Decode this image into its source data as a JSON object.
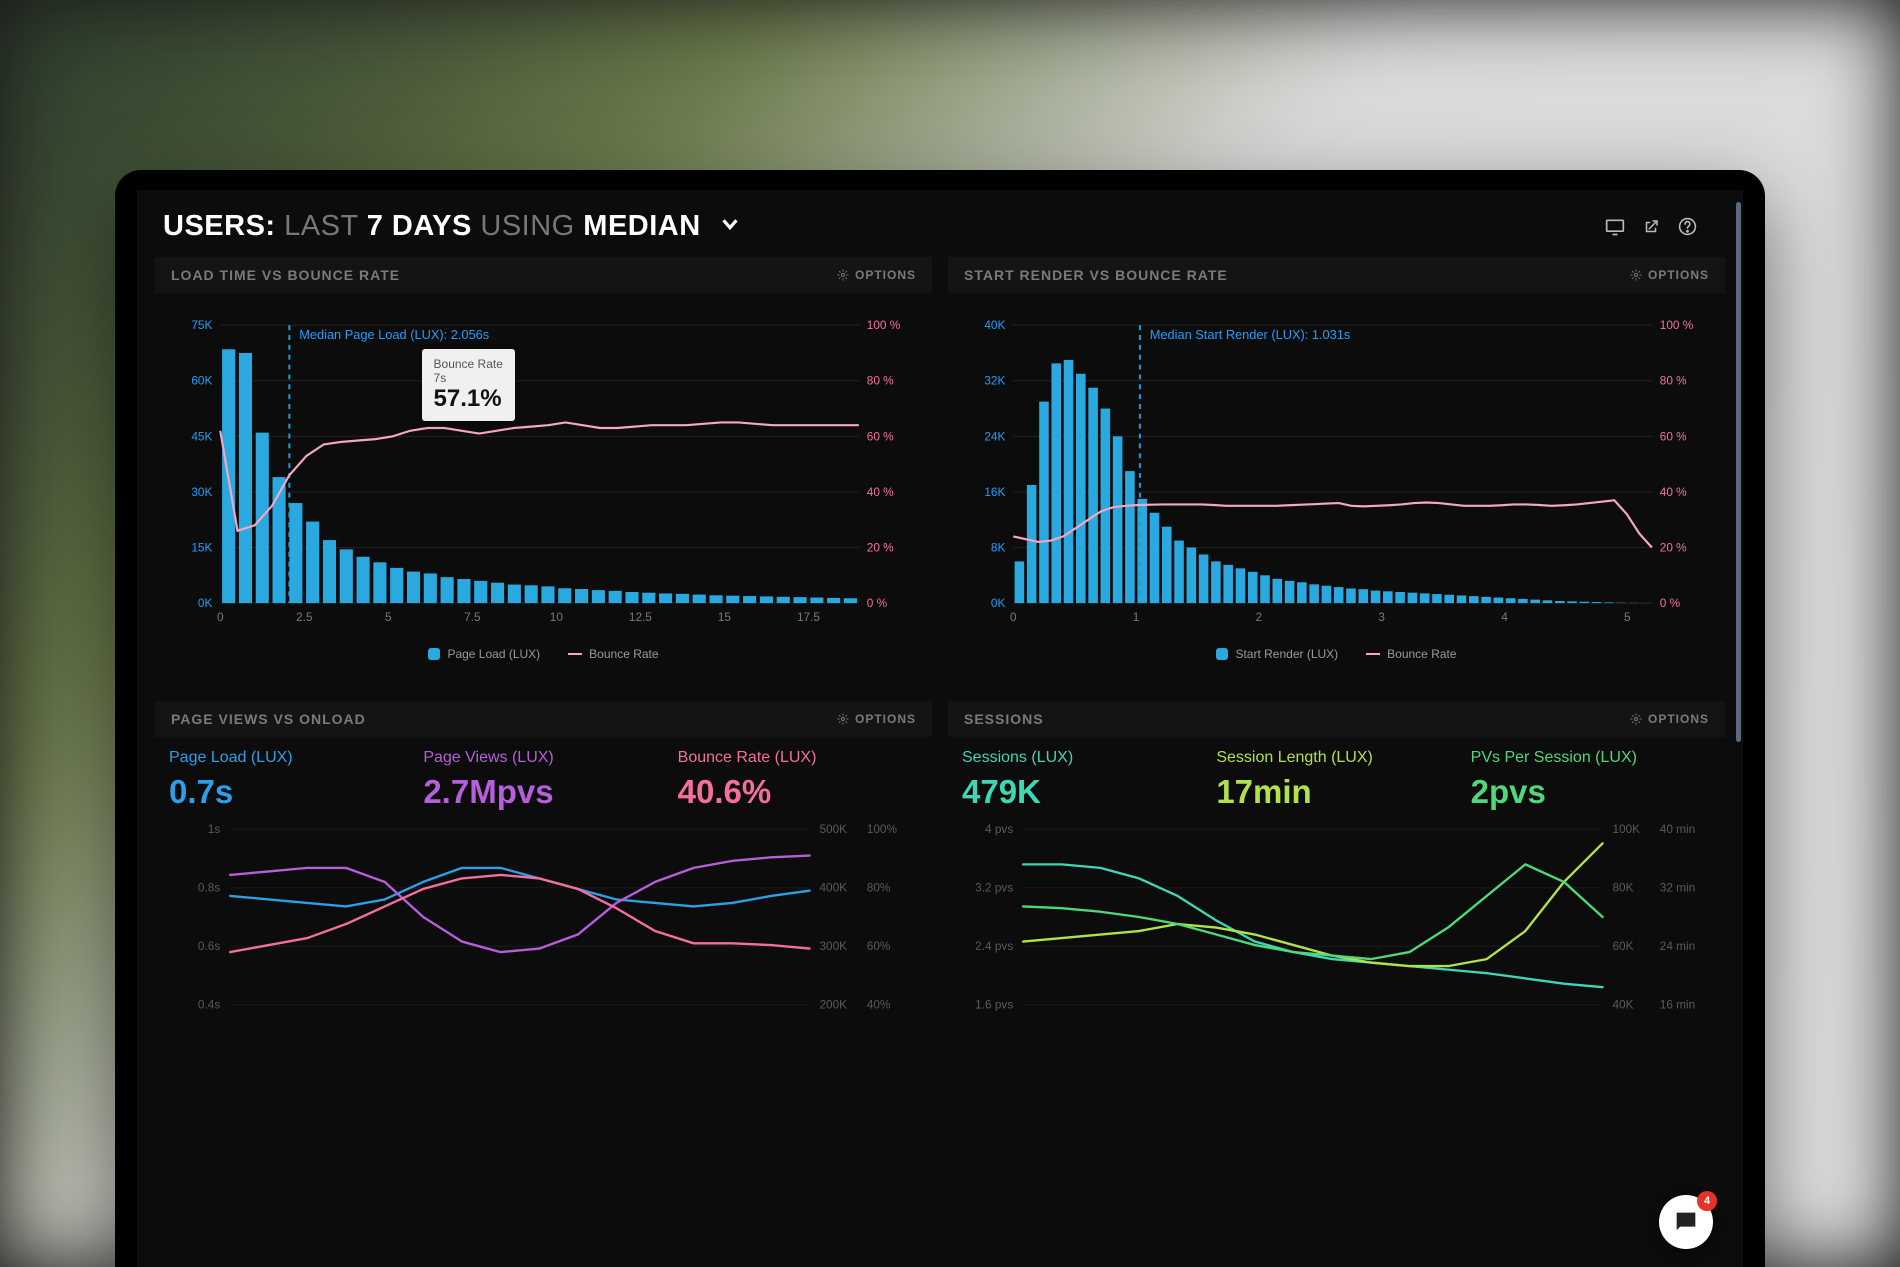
{
  "header": {
    "prefix": "USERS:",
    "dim1": "LAST",
    "bold1": "7 DAYS",
    "dim2": "USING",
    "bold2": "MEDIAN"
  },
  "colors": {
    "bg": "#0c0c0c",
    "panel_head": "#141414",
    "text_muted": "#7a7a7a",
    "bar": "#2aa8e0",
    "bar_glow": "#1fc8ff",
    "line_pink": "#f7a7c0",
    "axis_blue": "#1e9fff",
    "axis_pink": "#f56ea0",
    "grid": "#222222",
    "median_dash": "#18a0e0",
    "tooltip_bg": "#f0f0f0",
    "blue": "#2b9fe8",
    "purple": "#b65edc",
    "pink": "#f56ea0",
    "teal": "#3ed6b5",
    "lime": "#b0e24a",
    "green2": "#4fd87a"
  },
  "options_label": "OPTIONS",
  "chart1": {
    "title": "LOAD TIME VS BOUNCE RATE",
    "median_label": "Median Page Load (LUX): 2.056s",
    "median_x": 2.056,
    "left_axis": {
      "ticks": [
        0,
        15,
        30,
        45,
        60,
        75
      ],
      "suffix": "K",
      "max": 75
    },
    "right_axis": {
      "ticks": [
        0,
        20,
        40,
        60,
        80,
        100
      ],
      "suffix": " %",
      "max": 100
    },
    "x_axis": {
      "ticks": [
        0,
        2.5,
        5,
        7.5,
        10,
        12.5,
        15,
        17.5
      ],
      "max": 19
    },
    "bars": [
      68.5,
      67.5,
      46,
      34,
      27,
      22,
      17,
      14.5,
      12.5,
      11,
      9.5,
      8.5,
      8,
      7,
      6.5,
      6,
      5.5,
      5,
      4.8,
      4.5,
      4,
      3.8,
      3.5,
      3.3,
      3,
      2.8,
      2.6,
      2.5,
      2.3,
      2.1,
      2,
      1.9,
      1.8,
      1.7,
      1.6,
      1.5,
      1.4,
      1.3
    ],
    "bounce_line": [
      62,
      26,
      28,
      35,
      46,
      53,
      57.1,
      58,
      58.5,
      59,
      60,
      62,
      63,
      63,
      62,
      61,
      62,
      63,
      63.5,
      64,
      65,
      64,
      63,
      63,
      63.5,
      64,
      64,
      64,
      64.5,
      65,
      65,
      64.5,
      64,
      64,
      64,
      64,
      64,
      64
    ],
    "tooltip": {
      "title": "Bounce Rate",
      "sub": "7s",
      "value": "57.1%",
      "x": 7
    },
    "legend1": "Page Load (LUX)",
    "legend2": "Bounce Rate"
  },
  "chart2": {
    "title": "START RENDER VS BOUNCE RATE",
    "median_label": "Median Start Render (LUX): 1.031s",
    "median_x": 1.031,
    "left_axis": {
      "ticks": [
        0,
        8,
        16,
        24,
        32,
        40
      ],
      "suffix": "K",
      "max": 40
    },
    "right_axis": {
      "ticks": [
        0,
        20,
        40,
        60,
        80,
        100
      ],
      "suffix": " %",
      "max": 100
    },
    "x_axis": {
      "ticks": [
        0,
        1,
        2,
        3,
        4,
        5
      ],
      "max": 5.2
    },
    "bars": [
      6,
      17,
      29,
      34.5,
      35,
      33,
      31,
      28,
      24,
      19,
      15,
      13,
      11,
      9,
      8,
      7,
      6,
      5.5,
      5,
      4.5,
      4,
      3.5,
      3.2,
      3,
      2.7,
      2.5,
      2.3,
      2.1,
      2,
      1.8,
      1.7,
      1.6,
      1.5,
      1.4,
      1.3,
      1.2,
      1.1,
      1,
      0.9,
      0.8,
      0.7,
      0.6,
      0.5,
      0.4,
      0.3,
      0.25,
      0.2,
      0.15,
      0.1,
      0.05,
      0.03,
      0.02
    ],
    "bounce_line": [
      24,
      23,
      22,
      22.5,
      24,
      27,
      30,
      33,
      34.5,
      35,
      35.3,
      35.4,
      35.5,
      35.5,
      35.5,
      35.5,
      35.3,
      35,
      35,
      35,
      35,
      35,
      35.2,
      35.4,
      35.6,
      35.8,
      36,
      35,
      34.8,
      35,
      35.2,
      35.5,
      36,
      36.2,
      36,
      35.5,
      35,
      35,
      35,
      35.2,
      35.5,
      35.5,
      35.3,
      35,
      35.2,
      35.5,
      36,
      36.5,
      37,
      32,
      25,
      20
    ],
    "legend1": "Start Render (LUX)",
    "legend2": "Bounce Rate"
  },
  "chart3": {
    "title": "PAGE VIEWS VS ONLOAD",
    "metrics": [
      {
        "label": "Page Load (LUX)",
        "value": "0.7s",
        "cls": "c-blue"
      },
      {
        "label": "Page Views (LUX)",
        "value": "2.7Mpvs",
        "cls": "c-purple"
      },
      {
        "label": "Bounce Rate (LUX)",
        "value": "40.6%",
        "cls": "c-pink"
      }
    ],
    "left_axis": {
      "ticks": [
        "1s",
        "0.8s",
        "0.6s",
        "0.4s"
      ]
    },
    "right_axis1": {
      "ticks": [
        "500K",
        "400K",
        "300K",
        "200K"
      ]
    },
    "right_axis2": {
      "ticks": [
        "100%",
        "80%",
        "60%",
        "40%"
      ]
    },
    "lines": {
      "blue": [
        0.62,
        0.6,
        0.58,
        0.56,
        0.6,
        0.7,
        0.78,
        0.78,
        0.72,
        0.66,
        0.6,
        0.58,
        0.56,
        0.58,
        0.62,
        0.65
      ],
      "purple": [
        0.74,
        0.76,
        0.78,
        0.78,
        0.7,
        0.5,
        0.36,
        0.3,
        0.32,
        0.4,
        0.58,
        0.7,
        0.78,
        0.82,
        0.84,
        0.85
      ],
      "pink": [
        0.3,
        0.34,
        0.38,
        0.46,
        0.56,
        0.66,
        0.72,
        0.74,
        0.72,
        0.66,
        0.55,
        0.42,
        0.35,
        0.35,
        0.34,
        0.32
      ]
    }
  },
  "chart4": {
    "title": "SESSIONS",
    "metrics": [
      {
        "label": "Sessions (LUX)",
        "value": "479K",
        "cls": "c-teal"
      },
      {
        "label": "Session Length (LUX)",
        "value": "17min",
        "cls": "c-lime"
      },
      {
        "label": "PVs Per Session (LUX)",
        "value": "2pvs",
        "cls": "c-green2"
      }
    ],
    "left_axis": {
      "ticks": [
        "4 pvs",
        "3.2 pvs",
        "2.4 pvs",
        "1.6 pvs"
      ]
    },
    "right_axis1": {
      "ticks": [
        "100K",
        "80K",
        "60K",
        "40K"
      ]
    },
    "right_axis2": {
      "ticks": [
        "40 min",
        "32 min",
        "24 min",
        "16 min"
      ]
    },
    "lines": {
      "teal": [
        0.8,
        0.8,
        0.78,
        0.72,
        0.62,
        0.48,
        0.36,
        0.3,
        0.26,
        0.24,
        0.22,
        0.2,
        0.18,
        0.15,
        0.12,
        0.1
      ],
      "lime": [
        0.36,
        0.38,
        0.4,
        0.42,
        0.46,
        0.44,
        0.4,
        0.34,
        0.28,
        0.24,
        0.22,
        0.22,
        0.26,
        0.42,
        0.7,
        0.92
      ],
      "green": [
        0.56,
        0.55,
        0.53,
        0.5,
        0.46,
        0.4,
        0.34,
        0.3,
        0.28,
        0.26,
        0.3,
        0.44,
        0.62,
        0.8,
        0.7,
        0.5
      ]
    }
  },
  "chat_badge": "4"
}
